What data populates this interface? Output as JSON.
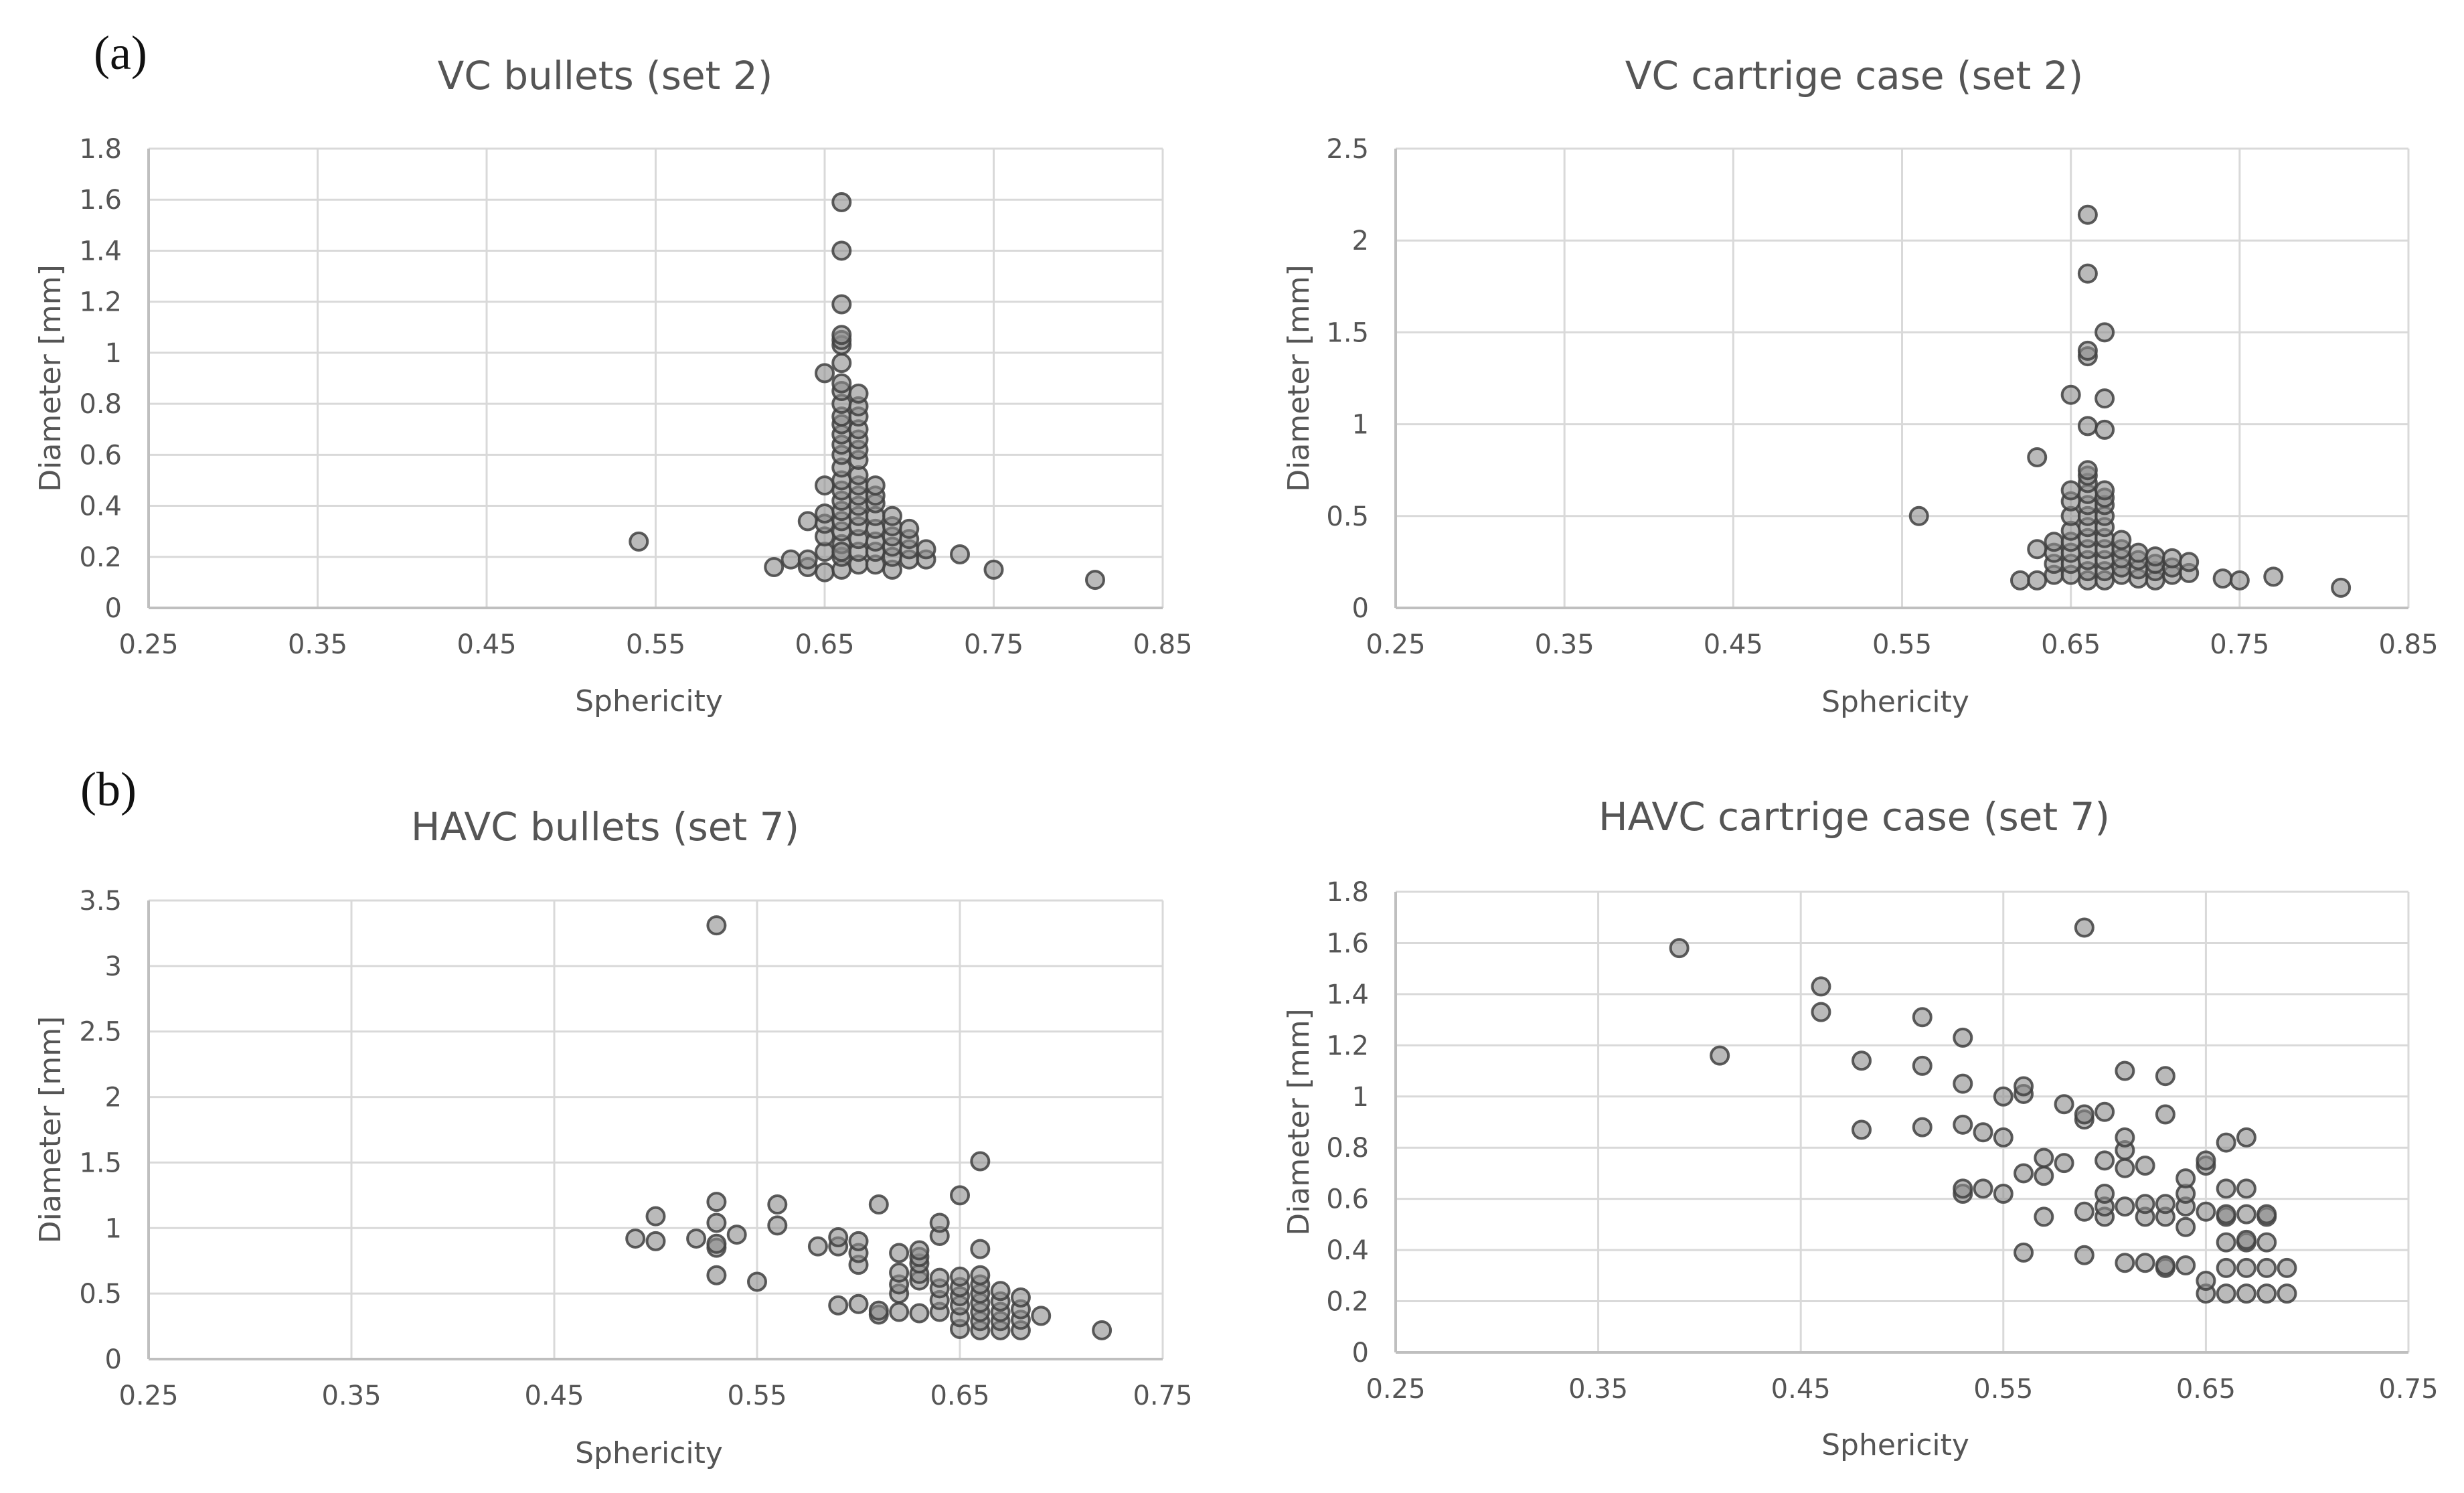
{
  "panel_labels": {
    "a": "(a)",
    "b": "(b)"
  },
  "colors": {
    "grid": "#d9d9d9",
    "axis": "#bfbfbf",
    "text": "#595959",
    "marker_fill": "#8c8c8c",
    "marker_stroke": "#404040"
  },
  "chart_data": [
    {
      "type": "scatter",
      "title": "VC bullets (set 2)",
      "xlabel": "Sphericity",
      "ylabel": "Diameter [mm]",
      "xlim": [
        0.25,
        0.85
      ],
      "ylim": [
        0,
        1.8
      ],
      "xticks": [
        "0.25",
        "0.35",
        "0.45",
        "0.55",
        "0.65",
        "0.75",
        "0.85"
      ],
      "yticks": [
        "0",
        "0.2",
        "0.4",
        "0.6",
        "0.8",
        "1",
        "1.2",
        "1.4",
        "1.6",
        "1.8"
      ],
      "x": [
        0.54,
        0.62,
        0.63,
        0.64,
        0.64,
        0.64,
        0.65,
        0.65,
        0.65,
        0.65,
        0.65,
        0.65,
        0.65,
        0.66,
        0.66,
        0.66,
        0.66,
        0.66,
        0.66,
        0.66,
        0.66,
        0.66,
        0.66,
        0.66,
        0.66,
        0.66,
        0.66,
        0.66,
        0.66,
        0.66,
        0.66,
        0.66,
        0.66,
        0.66,
        0.66,
        0.66,
        0.66,
        0.66,
        0.66,
        0.67,
        0.67,
        0.67,
        0.67,
        0.67,
        0.67,
        0.67,
        0.67,
        0.67,
        0.67,
        0.67,
        0.67,
        0.67,
        0.67,
        0.67,
        0.67,
        0.68,
        0.68,
        0.68,
        0.68,
        0.68,
        0.68,
        0.68,
        0.68,
        0.69,
        0.69,
        0.69,
        0.69,
        0.69,
        0.69,
        0.7,
        0.7,
        0.7,
        0.7,
        0.71,
        0.71,
        0.73,
        0.75,
        0.81
      ],
      "y": [
        0.26,
        0.16,
        0.19,
        0.16,
        0.19,
        0.34,
        0.14,
        0.22,
        0.28,
        0.33,
        0.37,
        0.48,
        0.92,
        0.15,
        0.2,
        0.25,
        0.3,
        0.34,
        0.38,
        0.42,
        0.46,
        0.5,
        0.55,
        0.6,
        0.64,
        0.68,
        0.72,
        0.75,
        0.8,
        0.85,
        0.88,
        0.96,
        1.03,
        1.05,
        1.07,
        1.19,
        1.4,
        1.59,
        0.22,
        0.17,
        0.22,
        0.27,
        0.32,
        0.36,
        0.4,
        0.44,
        0.48,
        0.52,
        0.58,
        0.62,
        0.66,
        0.7,
        0.75,
        0.79,
        0.84,
        0.17,
        0.22,
        0.26,
        0.31,
        0.36,
        0.41,
        0.44,
        0.48,
        0.15,
        0.2,
        0.24,
        0.28,
        0.32,
        0.36,
        0.19,
        0.23,
        0.27,
        0.31,
        0.19,
        0.23,
        0.21,
        0.15,
        0.11
      ]
    },
    {
      "type": "scatter",
      "title": "VC cartrige case (set 2)",
      "xlabel": "Sphericity",
      "ylabel": "Diameter [mm]",
      "xlim": [
        0.25,
        0.85
      ],
      "ylim": [
        0,
        2.5
      ],
      "xticks": [
        "0.25",
        "0.35",
        "0.45",
        "0.55",
        "0.65",
        "0.75",
        "0.85"
      ],
      "yticks": [
        "0",
        "0.5",
        "1",
        "1.5",
        "2",
        "2.5"
      ],
      "x": [
        0.56,
        0.62,
        0.63,
        0.63,
        0.63,
        0.64,
        0.64,
        0.64,
        0.64,
        0.65,
        0.65,
        0.65,
        0.65,
        0.65,
        0.65,
        0.65,
        0.65,
        0.65,
        0.66,
        0.66,
        0.66,
        0.66,
        0.66,
        0.66,
        0.66,
        0.66,
        0.66,
        0.66,
        0.66,
        0.66,
        0.66,
        0.66,
        0.66,
        0.66,
        0.66,
        0.67,
        0.67,
        0.67,
        0.67,
        0.67,
        0.67,
        0.67,
        0.67,
        0.67,
        0.67,
        0.67,
        0.67,
        0.67,
        0.68,
        0.68,
        0.68,
        0.68,
        0.68,
        0.69,
        0.69,
        0.69,
        0.69,
        0.7,
        0.7,
        0.7,
        0.7,
        0.71,
        0.71,
        0.71,
        0.72,
        0.72,
        0.74,
        0.75,
        0.77,
        0.81
      ],
      "y": [
        0.5,
        0.15,
        0.15,
        0.32,
        0.82,
        0.18,
        0.24,
        0.3,
        0.36,
        0.18,
        0.24,
        0.3,
        0.36,
        0.42,
        0.5,
        0.58,
        0.64,
        1.16,
        0.15,
        0.2,
        0.26,
        0.32,
        0.38,
        0.44,
        0.5,
        0.56,
        0.62,
        0.68,
        0.72,
        0.75,
        0.99,
        1.37,
        1.4,
        1.82,
        2.14,
        0.15,
        0.2,
        0.26,
        0.32,
        0.38,
        0.44,
        0.5,
        0.56,
        0.6,
        0.64,
        0.97,
        1.14,
        1.5,
        0.18,
        0.22,
        0.27,
        0.32,
        0.37,
        0.16,
        0.21,
        0.26,
        0.3,
        0.15,
        0.2,
        0.24,
        0.28,
        0.18,
        0.22,
        0.27,
        0.19,
        0.25,
        0.16,
        0.15,
        0.17,
        0.11
      ]
    },
    {
      "type": "scatter",
      "title": "HAVC bullets (set 7)",
      "xlabel": "Sphericity",
      "ylabel": "Diameter [mm]",
      "xlim": [
        0.25,
        0.75
      ],
      "ylim": [
        0,
        3.5
      ],
      "xticks": [
        "0.25",
        "0.35",
        "0.45",
        "0.55",
        "0.65",
        "0.75"
      ],
      "yticks": [
        "0",
        "0.5",
        "1",
        "1.5",
        "2",
        "2.5",
        "3",
        "3.5"
      ],
      "x": [
        0.49,
        0.5,
        0.5,
        0.52,
        0.53,
        0.53,
        0.53,
        0.53,
        0.53,
        0.53,
        0.54,
        0.55,
        0.56,
        0.56,
        0.58,
        0.59,
        0.59,
        0.59,
        0.6,
        0.6,
        0.6,
        0.6,
        0.61,
        0.61,
        0.61,
        0.62,
        0.62,
        0.62,
        0.62,
        0.62,
        0.63,
        0.63,
        0.63,
        0.63,
        0.63,
        0.63,
        0.64,
        0.64,
        0.64,
        0.64,
        0.64,
        0.64,
        0.65,
        0.65,
        0.65,
        0.65,
        0.65,
        0.65,
        0.65,
        0.66,
        0.66,
        0.66,
        0.66,
        0.66,
        0.66,
        0.66,
        0.66,
        0.66,
        0.67,
        0.67,
        0.67,
        0.67,
        0.67,
        0.68,
        0.68,
        0.68,
        0.68,
        0.69,
        0.72
      ],
      "y": [
        0.92,
        0.9,
        1.09,
        0.92,
        0.64,
        0.85,
        0.88,
        1.04,
        1.2,
        3.31,
        0.95,
        0.59,
        1.02,
        1.18,
        0.86,
        0.41,
        0.86,
        0.93,
        0.42,
        0.72,
        0.81,
        0.9,
        0.34,
        0.37,
        1.18,
        0.36,
        0.5,
        0.57,
        0.66,
        0.81,
        0.35,
        0.6,
        0.65,
        0.73,
        0.78,
        0.83,
        0.36,
        0.45,
        0.54,
        0.62,
        0.94,
        1.04,
        0.23,
        0.32,
        0.41,
        0.48,
        0.55,
        0.63,
        1.25,
        0.22,
        0.29,
        0.36,
        0.43,
        0.5,
        0.57,
        0.64,
        0.84,
        1.51,
        0.22,
        0.29,
        0.36,
        0.44,
        0.52,
        0.22,
        0.3,
        0.38,
        0.47,
        0.33,
        0.22
      ]
    },
    {
      "type": "scatter",
      "title": "HAVC cartrige case (set 7)",
      "xlabel": "Sphericity",
      "ylabel": "Diameter [mm]",
      "xlim": [
        0.25,
        0.75
      ],
      "ylim": [
        0,
        1.8
      ],
      "xticks": [
        "0.25",
        "0.35",
        "0.45",
        "0.55",
        "0.65",
        "0.75"
      ],
      "yticks": [
        "0",
        "0.2",
        "0.4",
        "0.6",
        "0.8",
        "1",
        "1.2",
        "1.4",
        "1.6",
        "1.8"
      ],
      "x": [
        0.39,
        0.41,
        0.46,
        0.46,
        0.48,
        0.48,
        0.51,
        0.51,
        0.51,
        0.53,
        0.53,
        0.53,
        0.53,
        0.53,
        0.54,
        0.54,
        0.55,
        0.55,
        0.55,
        0.56,
        0.56,
        0.56,
        0.56,
        0.57,
        0.57,
        0.57,
        0.58,
        0.58,
        0.59,
        0.59,
        0.59,
        0.59,
        0.59,
        0.6,
        0.6,
        0.6,
        0.6,
        0.6,
        0.61,
        0.61,
        0.61,
        0.61,
        0.61,
        0.61,
        0.62,
        0.62,
        0.62,
        0.62,
        0.63,
        0.63,
        0.63,
        0.63,
        0.63,
        0.63,
        0.64,
        0.64,
        0.64,
        0.64,
        0.64,
        0.65,
        0.65,
        0.65,
        0.65,
        0.65,
        0.66,
        0.66,
        0.66,
        0.66,
        0.66,
        0.66,
        0.66,
        0.67,
        0.67,
        0.67,
        0.67,
        0.67,
        0.67,
        0.67,
        0.68,
        0.68,
        0.68,
        0.68,
        0.68,
        0.69,
        0.69
      ],
      "y": [
        1.58,
        1.16,
        1.33,
        1.43,
        0.87,
        1.14,
        0.88,
        1.12,
        1.31,
        0.62,
        0.64,
        0.89,
        1.05,
        1.23,
        0.64,
        0.86,
        0.62,
        0.84,
        1.0,
        0.39,
        0.7,
        1.01,
        1.04,
        0.53,
        0.69,
        0.76,
        0.74,
        0.97,
        0.38,
        0.55,
        0.91,
        0.93,
        1.66,
        0.53,
        0.57,
        0.62,
        0.75,
        0.94,
        0.35,
        0.57,
        0.72,
        0.79,
        0.84,
        1.1,
        0.35,
        0.53,
        0.58,
        0.73,
        0.33,
        0.34,
        0.53,
        0.58,
        0.93,
        1.08,
        0.34,
        0.49,
        0.57,
        0.62,
        0.68,
        0.23,
        0.28,
        0.55,
        0.73,
        0.75,
        0.23,
        0.33,
        0.43,
        0.53,
        0.54,
        0.64,
        0.82,
        0.23,
        0.33,
        0.43,
        0.54,
        0.64,
        0.84,
        0.44,
        0.23,
        0.33,
        0.43,
        0.53,
        0.54,
        0.23,
        0.33
      ]
    }
  ]
}
